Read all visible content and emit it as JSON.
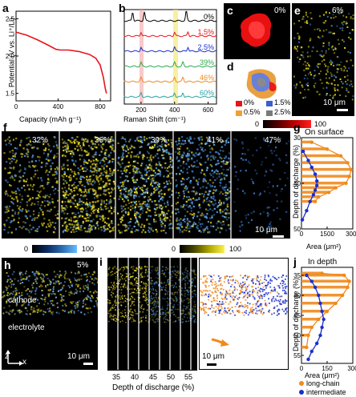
{
  "panels": {
    "a": {
      "label": "a"
    },
    "b": {
      "label": "b"
    },
    "c": {
      "label": "c",
      "pct": "0%"
    },
    "d": {
      "label": "d"
    },
    "e": {
      "label": "e",
      "pct": "6%",
      "scale": "10 μm"
    },
    "f": {
      "label": "f",
      "pcts": [
        "32%",
        "36%",
        "39%",
        "41%",
        "47%"
      ],
      "scale": "10 μm"
    },
    "g": {
      "label": "g",
      "title": "On surface",
      "xlabel": "Area (μm²)",
      "ylabel": "Depth of discharge (%)",
      "xticks": [
        "0",
        "1500",
        "3000"
      ],
      "yticks": [
        "30",
        "40",
        "50"
      ]
    },
    "h": {
      "label": "h",
      "pct": "5%",
      "cathode": "cathode",
      "electrolyte": "electrolyte",
      "scale": "10 μm",
      "axis_z": "z",
      "axis_x": "x"
    },
    "i": {
      "label": "i",
      "xlabel": "Depth of discharge (%)",
      "xticks": [
        "35",
        "40",
        "45",
        "50",
        "55"
      ],
      "scale": "10 μm"
    },
    "j": {
      "label": "j",
      "title": "In depth",
      "xlabel": "Area (μm²)",
      "ylabel": "Depth of discharge (%)",
      "xticks": [
        "0",
        "150",
        "300"
      ],
      "yticks": [
        "35",
        "40",
        "45",
        "50",
        "55"
      ]
    }
  },
  "colorbars": {
    "red": {
      "min": "0",
      "max": "100"
    },
    "blue": {
      "min": "0",
      "max": "100"
    },
    "yellow": {
      "min": "0",
      "max": "100"
    }
  },
  "legend_d": {
    "items": [
      "0%",
      "1.5%",
      "0.5%",
      "2.5%"
    ]
  },
  "legend_j": {
    "items": [
      "long-chain",
      "intermediate"
    ]
  },
  "colors": {
    "red": "#e8141c",
    "orange": "#f08a1c",
    "blue": "#1a2ecc",
    "green": "#2fa84f",
    "teal": "#2aa3a0",
    "yellow": "#f5e61a",
    "cyan": "#3aa0e8",
    "gray": "#7a7a7a"
  },
  "chart_data": [
    {
      "type": "line",
      "panel": "a",
      "xlabel": "Capacity (mAh g⁻¹)",
      "ylabel": "Potential (V vs. Li⁺/Li)",
      "xlim": [
        0,
        900
      ],
      "ylim": [
        1.4,
        2.6
      ],
      "xticks": [
        "0",
        "400",
        "800"
      ],
      "yticks": [
        "1.5",
        "2.0",
        "2.5"
      ],
      "series": [
        {
          "x": [
            0,
            100,
            200,
            300,
            380,
            420,
            500,
            600,
            700,
            760,
            800,
            830,
            850,
            860
          ],
          "y": [
            2.32,
            2.28,
            2.22,
            2.15,
            2.09,
            2.08,
            2.08,
            2.06,
            2.02,
            1.97,
            1.88,
            1.72,
            1.56,
            1.5
          ]
        }
      ]
    },
    {
      "type": "line",
      "panel": "b",
      "xlabel": "Raman Shift (cm⁻¹)",
      "xticks": [
        "200",
        "400",
        "600"
      ],
      "xlim": [
        100,
        650
      ],
      "series": [
        {
          "name": "0%",
          "peaks": [
            150,
            220,
            470
          ]
        },
        {
          "name": "1.5%",
          "peaks": [
            200,
            400,
            480
          ]
        },
        {
          "name": "2.5%",
          "peaks": [
            200,
            400,
            480
          ]
        },
        {
          "name": "39%",
          "peaks": [
            200,
            400,
            450
          ]
        },
        {
          "name": "46%",
          "peaks": [
            200,
            400,
            450
          ]
        },
        {
          "name": "60%",
          "peaks": [
            200,
            400,
            450
          ]
        }
      ]
    },
    {
      "type": "line",
      "panel": "g",
      "xlim": [
        0,
        3000
      ],
      "ylim": [
        30,
        50
      ],
      "series": [
        {
          "name": "long-chain",
          "x": [
            600,
            1500,
            2300,
            2700,
            2900,
            2800,
            2600,
            2000,
            1600,
            1000,
            800
          ],
          "y": [
            31,
            32.5,
            34,
            35.5,
            37,
            38.5,
            40,
            41,
            42,
            43,
            44
          ]
        },
        {
          "name": "intermediate",
          "x": [
            100,
            400,
            600,
            800,
            900,
            900,
            800,
            700,
            500,
            300,
            50
          ],
          "y": [
            33,
            35,
            36.5,
            38,
            39.5,
            40.5,
            41.5,
            42.5,
            44,
            46,
            48
          ]
        }
      ]
    },
    {
      "type": "line",
      "panel": "j",
      "xlim": [
        0,
        300
      ],
      "ylim": [
        33,
        57
      ],
      "series": [
        {
          "name": "long-chain",
          "x": [
            120,
            250,
            280,
            270,
            240,
            200,
            150,
            100,
            60,
            40,
            30
          ],
          "y": [
            34.5,
            35,
            36.5,
            38,
            40,
            42,
            44,
            46,
            48,
            50,
            53
          ]
        },
        {
          "name": "intermediate",
          "x": [
            30,
            60,
            80,
            100,
            110,
            120,
            130,
            120,
            110,
            90,
            60,
            40
          ],
          "y": [
            35,
            36.5,
            38,
            40,
            42,
            44,
            46,
            48,
            50,
            52,
            54,
            56
          ]
        }
      ]
    }
  ]
}
